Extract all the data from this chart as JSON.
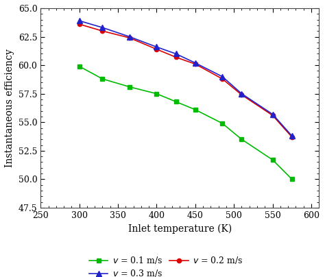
{
  "x": [
    300,
    330,
    365,
    400,
    425,
    450,
    485,
    510,
    550,
    575
  ],
  "v01": [
    59.9,
    58.8,
    58.1,
    57.5,
    56.8,
    56.1,
    54.9,
    53.5,
    51.7,
    50.0
  ],
  "v02": [
    63.6,
    63.0,
    62.4,
    61.4,
    60.7,
    60.1,
    58.8,
    57.4,
    55.6,
    53.7
  ],
  "v03": [
    63.9,
    63.3,
    62.5,
    61.6,
    61.0,
    60.2,
    59.0,
    57.5,
    55.7,
    53.8
  ],
  "color_v01": "#00bb00",
  "color_v02": "#dd0000",
  "color_v03": "#2222cc",
  "xlabel": "Inlet temperature (K)",
  "ylabel": "Instantaneous efficiency",
  "xlim": [
    250,
    610
  ],
  "ylim": [
    47.5,
    65.0
  ],
  "xticks": [
    250,
    300,
    350,
    400,
    450,
    500,
    550,
    600
  ],
  "yticks": [
    47.5,
    50.0,
    52.5,
    55.0,
    57.5,
    60.0,
    62.5,
    65.0
  ],
  "legend_v01": "$v$ = 0.1 m/s",
  "legend_v02": "$v$ = 0.2 m/s",
  "legend_v03": "$v$ = 0.3 m/s",
  "bg_color": "#ffffff"
}
